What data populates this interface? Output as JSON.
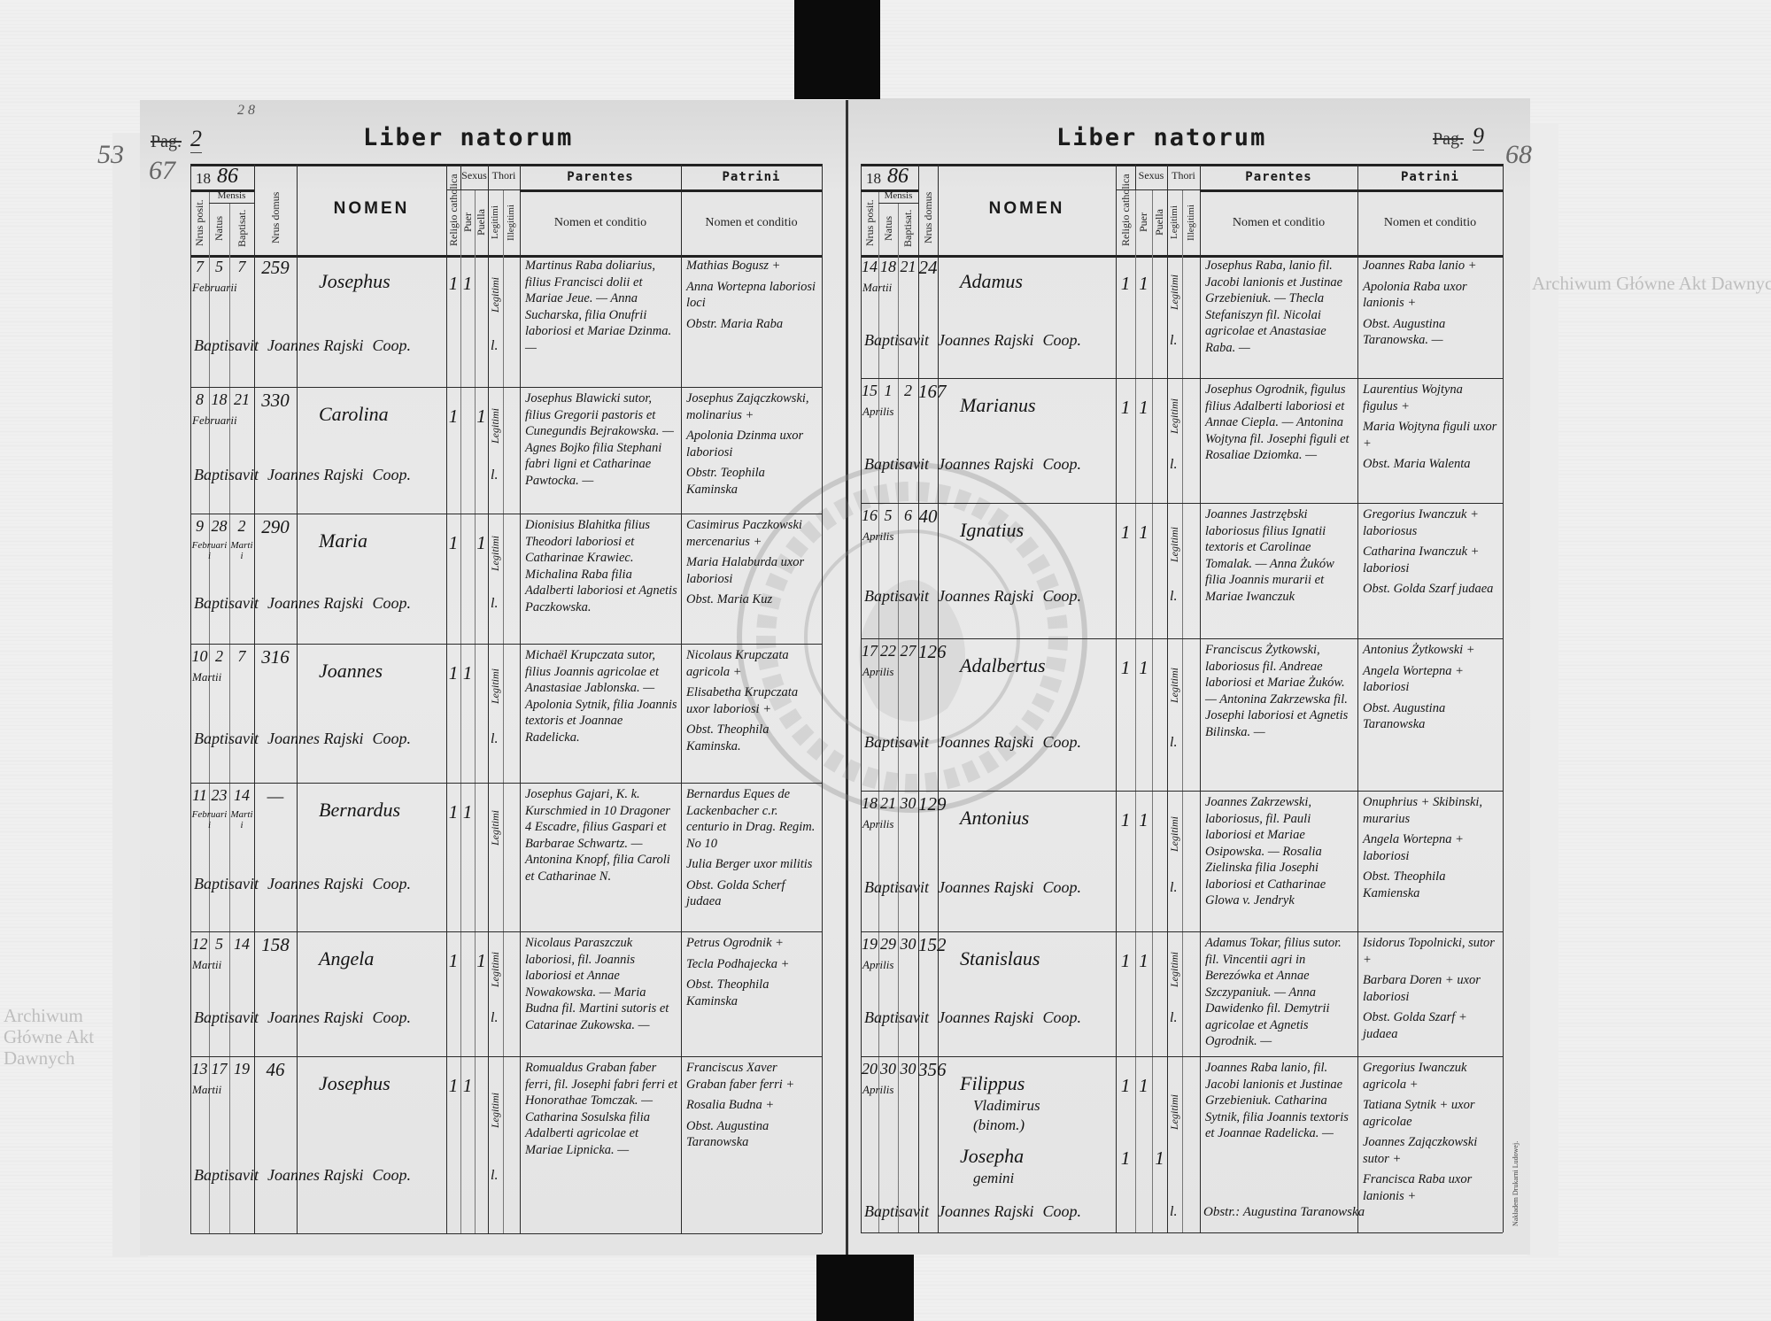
{
  "header": {
    "year_prefix": "18",
    "year_suffix": "86",
    "mensis": "Mensis",
    "nrus_posit": "Nrus posit.",
    "natus": "Natus",
    "baptisat": "Baptisat.",
    "nrus_domus": "Nrus domus",
    "nomen": "NOMEN",
    "religio": "Religio catholica",
    "sexus": "Sexus",
    "puer": "Puer",
    "puella": "Puella",
    "thori": "Thori",
    "legitimi": "Legitimi",
    "illegitimi": "Illegitimi",
    "parentes": "Parentes",
    "patrini": "Patrini",
    "nomen_et_conditio": "Nomen et conditio"
  },
  "left_page": {
    "top_mark": "2 8",
    "margin_numbers": [
      "53",
      "67"
    ],
    "page_label": "Pag.",
    "page_number": "2",
    "title": "Liber natorum",
    "entries": [
      {
        "nr": "7",
        "natus_day": "5",
        "bapt_day": "7",
        "natus_month": "Februarii",
        "bapt_month": "",
        "domus": "259",
        "names": [
          {
            "lines": [
              "Josephus"
            ],
            "religio": "1",
            "puer": "1",
            "puella": ""
          }
        ],
        "thori": "Legitimi",
        "legit_mark": "l.",
        "baptisavit": "Baptisavit",
        "priest": "Joannes Rajski",
        "coop": "Coop.",
        "parentes": "Martinus Raba doliarius, filius Francisci dolii et Mariae Jeue. — Anna Sucharska, filia Onufrii laboriosi et Mariae Dzinma. —",
        "patrini": [
          "Mathias Bogusz +",
          "Anna Wortepna laboriosi loci",
          "Obstr. Maria Raba"
        ]
      },
      {
        "nr": "8",
        "natus_day": "18",
        "bapt_day": "21",
        "natus_month": "Februarii",
        "bapt_month": "",
        "domus": "330",
        "names": [
          {
            "lines": [
              "Carolina"
            ],
            "religio": "1",
            "puer": "",
            "puella": "1"
          }
        ],
        "thori": "Legitimi",
        "legit_mark": "l.",
        "baptisavit": "Baptisavit",
        "priest": "Joannes Rajski",
        "coop": "Coop.",
        "parentes": "Josephus Blawicki sutor, filius Gregorii pastoris et Cunegundis Bejrakowska. — Agnes Bojko filia Stephani fabri ligni et Catharinae Pawtocka. —",
        "patrini": [
          "Josephus Zajączkowski, molinarius +",
          "Apolonia Dzinma uxor laboriosi",
          "Obstr. Teophila Kaminska"
        ]
      },
      {
        "nr": "9",
        "natus_day": "28",
        "bapt_day": "2",
        "natus_month": "Februarii",
        "bapt_month": "Martii",
        "domus": "290",
        "names": [
          {
            "lines": [
              "Maria"
            ],
            "religio": "1",
            "puer": "",
            "puella": "1"
          }
        ],
        "thori": "Legitimi",
        "legit_mark": "l.",
        "baptisavit": "Baptisavit",
        "priest": "Joannes Rajski",
        "coop": "Coop.",
        "parentes": "Dionisius Blahitka filius Theodori laboriosi et Catharinae Krawiec. Michalina Raba filia Adalberti laboriosi et Agnetis Paczkowska.",
        "patrini": [
          "Casimirus Paczkowski mercenarius +",
          "Maria Halaburda uxor laboriosi",
          "Obst. Maria Kuz"
        ]
      },
      {
        "nr": "10",
        "natus_day": "2",
        "bapt_day": "7",
        "natus_month": "Martii",
        "bapt_month": "",
        "domus": "316",
        "names": [
          {
            "lines": [
              "Joannes"
            ],
            "religio": "1",
            "puer": "1",
            "puella": ""
          }
        ],
        "thori": "Legitimi",
        "legit_mark": "l.",
        "baptisavit": "Baptisavit",
        "priest": "Joannes Rajski",
        "coop": "Coop.",
        "parentes": "Michaël Krupczata sutor, filius Joannis agricolae et Anastasiae Jablonska. — Apolonia Sytnik, filia Joannis textoris et Joannae Radelicka.",
        "patrini": [
          "Nicolaus Krupczata agricola +",
          "Elisabetha Krupczata uxor laboriosi +",
          "Obst. Theophila Kaminska."
        ]
      },
      {
        "nr": "11",
        "natus_day": "23",
        "bapt_day": "14",
        "natus_month": "Februarii",
        "bapt_month": "Martii",
        "domus": "—",
        "names": [
          {
            "lines": [
              "Bernardus"
            ],
            "religio": "1",
            "puer": "1",
            "puella": ""
          }
        ],
        "thori": "Legitimi",
        "legit_mark": "",
        "baptisavit": "Baptisavit",
        "priest": "Joannes Rajski",
        "coop": "Coop.",
        "parentes": "Josephus Gajari, K. k. Kurschmied in 10 Dragoner 4 Escadre, filius Gaspari et Barbarae Schwartz. — Antonina Knopf, filia Caroli et Catharinae N.",
        "patrini": [
          "Bernardus Eques de Lackenbacher c.r. centurio in Drag. Regim. No 10",
          "Julia Berger uxor militis",
          "Obst. Golda Scherf judaea"
        ]
      },
      {
        "nr": "12",
        "natus_day": "5",
        "bapt_day": "14",
        "natus_month": "Martii",
        "bapt_month": "",
        "domus": "158",
        "names": [
          {
            "lines": [
              "Angela"
            ],
            "religio": "1",
            "puer": "",
            "puella": "1"
          }
        ],
        "thori": "Legitimi",
        "legit_mark": "l.",
        "baptisavit": "Baptisavit",
        "priest": "Joannes Rajski",
        "coop": "Coop.",
        "parentes": "Nicolaus Paraszczuk laboriosi, fil. Joannis laboriosi et Annae Nowakowska. — Maria Budna fil. Martini sutoris et Catarinae Zukowska. —",
        "patrini": [
          "Petrus Ogrodnik +",
          "Tecla Podhajecka +",
          "Obst. Theophila Kaminska"
        ]
      },
      {
        "nr": "13",
        "natus_day": "17",
        "bapt_day": "19",
        "natus_month": "Martii",
        "bapt_month": "",
        "domus": "46",
        "names": [
          {
            "lines": [
              "Josephus"
            ],
            "religio": "1",
            "puer": "1",
            "puella": ""
          }
        ],
        "thori": "Legitimi",
        "legit_mark": "l.",
        "baptisavit": "Baptisavit",
        "priest": "Joannes Rajski",
        "coop": "Coop.",
        "parentes": "Romualdus Graban faber ferri, fil. Josephi fabri ferri et Honorathae Tomczak. — Catharina Sosulska filia Adalberti agricolae et Mariae Lipnicka. —",
        "patrini": [
          "Franciscus Xaver Graban faber ferri +",
          "Rosalia Budna +",
          "Obst. Augustina Taranowska"
        ]
      }
    ]
  },
  "right_page": {
    "margin_numbers": [
      "68"
    ],
    "page_label": "Pag.",
    "page_number": "9",
    "title": "Liber natorum",
    "imprint": "Nakładem Drukarni Ludowej.",
    "entries": [
      {
        "nr": "14",
        "natus_day": "18",
        "bapt_day": "21",
        "natus_month": "Martii",
        "bapt_month": "",
        "domus": "24",
        "names": [
          {
            "lines": [
              "Adamus"
            ],
            "religio": "1",
            "puer": "1",
            "puella": ""
          }
        ],
        "thori": "Legitimi",
        "legit_mark": "l.",
        "baptisavit": "Baptisavit",
        "priest": "Joannes Rajski",
        "coop": "Coop.",
        "parentes": "Josephus Raba, lanio fil. Jacobi lanionis et Justinae Grzebieniuk. — Thecla Stefaniszyn fil. Nicolai agricolae et Anastasiae Raba. —",
        "patrini": [
          "Joannes Raba lanio +",
          "Apolonia Raba uxor lanionis +",
          "Obst. Augustina Taranowska. —"
        ]
      },
      {
        "nr": "15",
        "natus_day": "1",
        "bapt_day": "2",
        "natus_month": "Aprilis",
        "bapt_month": "",
        "domus": "167",
        "names": [
          {
            "lines": [
              "Marianus"
            ],
            "religio": "1",
            "puer": "1",
            "puella": ""
          }
        ],
        "thori": "Legitimi",
        "legit_mark": "l.",
        "baptisavit": "Baptisavit",
        "priest": "Joannes Rajski",
        "coop": "Coop.",
        "parentes": "Josephus Ogrodnik, figulus filius Adalberti laboriosi et Annae Ciepla. — Antonina Wojtyna fil. Josephi figuli et Rosaliae Dziomka. —",
        "patrini": [
          "Laurentius Wojtyna figulus +",
          "Maria Wojtyna figuli uxor +",
          "Obst. Maria Walenta"
        ]
      },
      {
        "nr": "16",
        "natus_day": "5",
        "bapt_day": "6",
        "natus_month": "Aprilis",
        "bapt_month": "",
        "domus": "40",
        "names": [
          {
            "lines": [
              "Ignatius"
            ],
            "religio": "1",
            "puer": "1",
            "puella": ""
          }
        ],
        "thori": "Legitimi",
        "legit_mark": "l.",
        "baptisavit": "Baptisavit",
        "priest": "Joannes Rajski",
        "coop": "Coop.",
        "parentes": "Joannes Jastrzębski laboriosus filius Ignatii textoris et Carolinae Tomalak. — Anna Żuków filia Joannis murarii et Mariae Iwanczuk",
        "patrini": [
          "Gregorius Iwanczuk + laboriosus",
          "Catharina Iwanczuk + laboriosi",
          "Obst. Golda Szarf judaea"
        ]
      },
      {
        "nr": "17",
        "natus_day": "22",
        "bapt_day": "27",
        "natus_month": "Aprilis",
        "bapt_month": "",
        "domus": "126",
        "names": [
          {
            "lines": [
              "Adalbertus"
            ],
            "religio": "1",
            "puer": "1",
            "puella": ""
          }
        ],
        "thori": "Legitimi",
        "legit_mark": "l.",
        "baptisavit": "Baptisavit",
        "priest": "Joannes Rajski",
        "coop": "Coop.",
        "parentes": "Franciscus Żytkowski, laboriosus fil. Andreae laboriosi et Mariae Żuków. — Antonina Zakrzewska fil. Josephi laboriosi et Agnetis Bilinska. —",
        "patrini": [
          "Antonius Żytkowski +",
          "Angela Wortepna + laboriosi",
          "Obst. Augustina Taranowska"
        ]
      },
      {
        "nr": "18",
        "natus_day": "21",
        "bapt_day": "30",
        "natus_month": "Aprilis",
        "bapt_month": "",
        "domus": "129",
        "names": [
          {
            "lines": [
              "Antonius"
            ],
            "religio": "1",
            "puer": "1",
            "puella": ""
          }
        ],
        "thori": "Legitimi",
        "legit_mark": "l.",
        "baptisavit": "Baptisavit",
        "priest": "Joannes Rajski",
        "coop": "Coop.",
        "parentes": "Joannes Zakrzewski, laboriosus, fil. Pauli laboriosi et Mariae Osipowska. — Rosalia Zielinska filia Josephi laboriosi et Catharinae Glowa v. Jendryk",
        "patrini": [
          "Onuphrius + Skibinski, murarius",
          "Angela Wortepna + laboriosi",
          "Obst. Theophila Kamienska"
        ]
      },
      {
        "nr": "19",
        "natus_day": "29",
        "bapt_day": "30",
        "natus_month": "Aprilis",
        "bapt_month": "",
        "domus": "152",
        "names": [
          {
            "lines": [
              "Stanislaus"
            ],
            "religio": "1",
            "puer": "1",
            "puella": ""
          }
        ],
        "thori": "Legitimi",
        "legit_mark": "l.",
        "baptisavit": "Baptisavit",
        "priest": "Joannes Rajski",
        "coop": "Coop.",
        "parentes": "Adamus Tokar, filius sutor. fil. Vincentii agri in Berezówka et Annae Szczypaniuk. — Anna Dawidenko fil. Demytrii agricolae et Agnetis Ogrodnik. —",
        "patrini": [
          "Isidorus Topolnicki, sutor +",
          "Barbara Doren + uxor laboriosi",
          "Obst. Golda Szarf + judaea"
        ]
      },
      {
        "nr": "20",
        "natus_day": "30",
        "bapt_day": "30",
        "natus_month": "Aprilis",
        "bapt_month": "",
        "domus": "356",
        "names": [
          {
            "lines": [
              "Filippus",
              "Vladimirus",
              "(binom.)"
            ],
            "religio": "1",
            "puer": "1",
            "puella": ""
          },
          {
            "lines": [
              "Josepha",
              "gemini"
            ],
            "religio": "1",
            "puer": "",
            "puella": "1"
          }
        ],
        "thori": "Legitimi",
        "legit_mark": "l.",
        "baptisavit": "Baptisavit",
        "priest": "Joannes Rajski",
        "coop": "Coop.",
        "parentes": "Joannes Raba lanio, fil. Jacobi lanionis et Justinae Grzebieniuk. Catharina Sytnik, filia Joannis textoris et Joannae Radelicka. —",
        "obst_extra": "Obstr.: Augustina Taranowska",
        "patrini": [
          "Gregorius Iwanczuk agricola +",
          "Tatiana Sytnik + uxor agricolae",
          "Joannes Zajączkowski sutor +",
          "Francisca Raba uxor lanionis +"
        ]
      }
    ]
  },
  "watermarks": {
    "top_right": "Archiwum Główne Akt Dawnych",
    "left": "Archiwum Główne Akt Dawnych",
    "stamp_text": "ARCHIWUM GŁÓWNE AKT DAWNYCH"
  },
  "colors": {
    "paper": "#e6e6e6",
    "ink": "#151515",
    "background": "#f0f0f0",
    "strap": "#0b0b0b"
  }
}
